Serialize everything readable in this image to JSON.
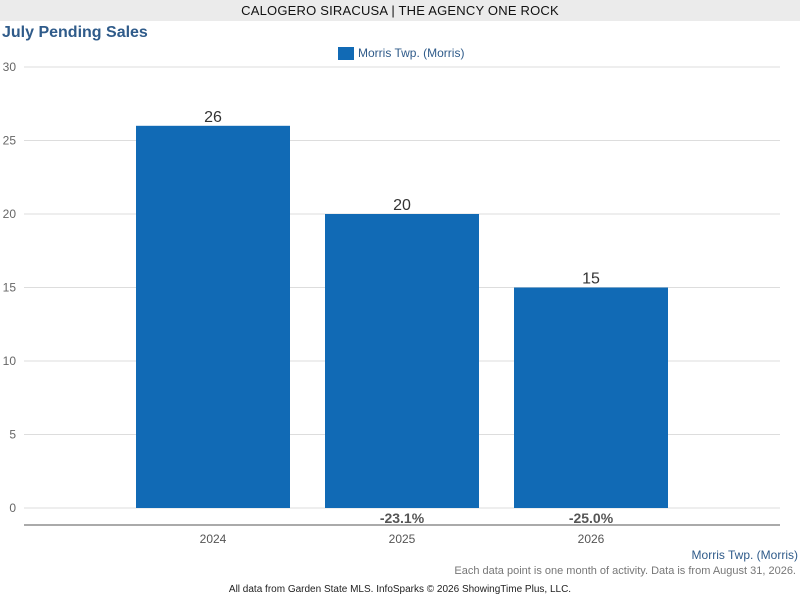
{
  "banner": "CALOGERO SIRACUSA | THE AGENCY ONE ROCK",
  "series_label": "Morris Twp. (Morris)",
  "footnote": "Each data point is one month of activity. Data is from August 31, 2026.",
  "credits": "All data from Garden State MLS. InfoSparks © 2026 ShowingTime Plus, LLC.",
  "colors": {
    "bar": "#116ab5",
    "title": "#2f5b8a",
    "grid": "#dddddd",
    "axis": "#555555"
  },
  "chart_data": {
    "type": "bar",
    "title": "July Pending Sales",
    "categories": [
      "2024",
      "2025",
      "2026"
    ],
    "series": [
      {
        "name": "Morris Twp. (Morris)",
        "values": [
          26,
          20,
          15
        ]
      }
    ],
    "value_labels": [
      "26",
      "20",
      "15"
    ],
    "change_labels": [
      "",
      "-23.1%",
      "-25.0%"
    ],
    "ylim": [
      0,
      30
    ],
    "yticks": [
      0,
      5,
      10,
      15,
      20,
      25,
      30
    ],
    "xlabel": "",
    "ylabel": "",
    "grid": true,
    "legend": "top-center"
  }
}
